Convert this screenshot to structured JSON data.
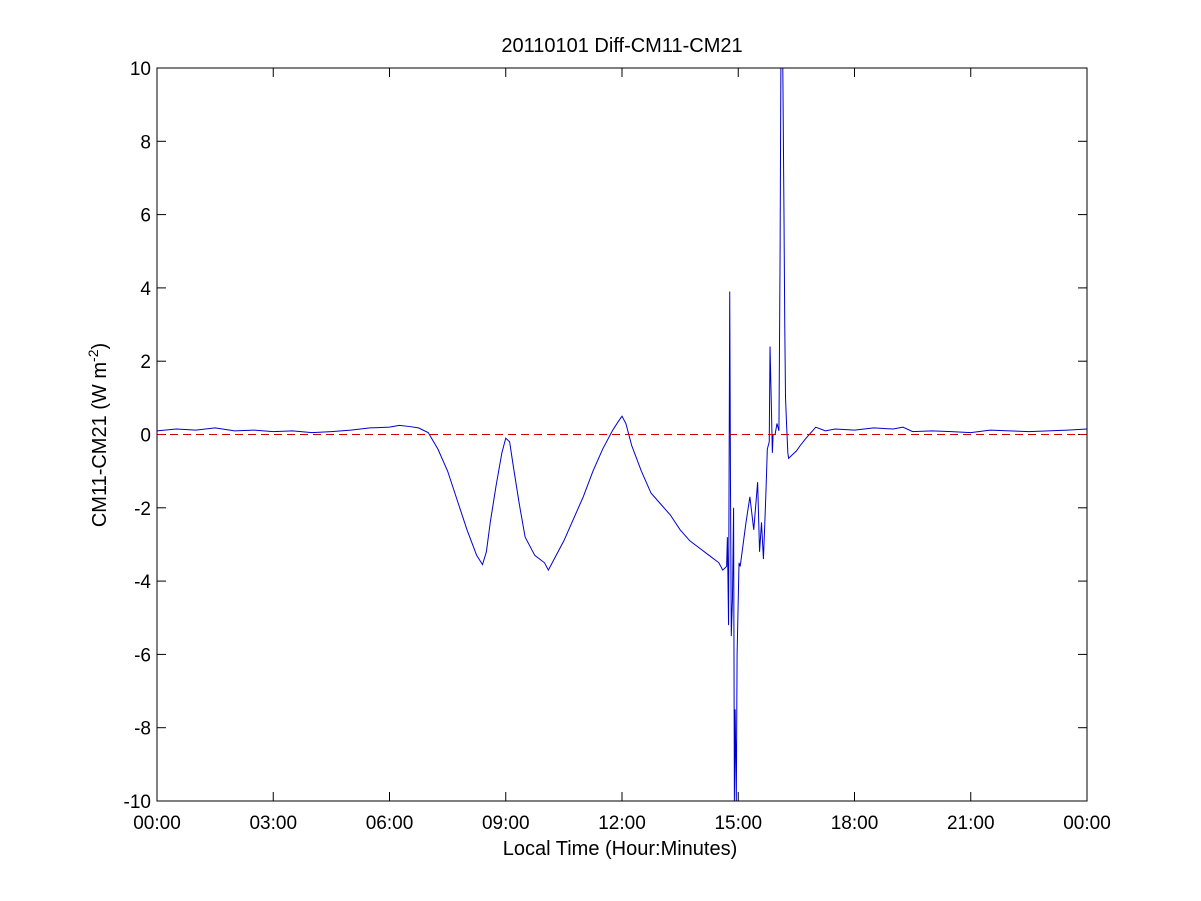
{
  "chart_data": {
    "type": "line",
    "title": "20110101 Diff-CM11-CM21",
    "xlabel": "Local Time (Hour:Minutes)",
    "ylabel": {
      "prefix": "CM11-CM21 (W m",
      "superscript": "-2",
      "suffix": ")"
    },
    "xlim": [
      0,
      24
    ],
    "ylim": [
      -10,
      10
    ],
    "x_ticks": [
      {
        "value": 0,
        "label": "00:00"
      },
      {
        "value": 3,
        "label": "03:00"
      },
      {
        "value": 6,
        "label": "06:00"
      },
      {
        "value": 9,
        "label": "09:00"
      },
      {
        "value": 12,
        "label": "12:00"
      },
      {
        "value": 15,
        "label": "15:00"
      },
      {
        "value": 18,
        "label": "18:00"
      },
      {
        "value": 21,
        "label": "21:00"
      },
      {
        "value": 24,
        "label": "00:00"
      }
    ],
    "y_ticks": [
      {
        "value": 10,
        "label": "10"
      },
      {
        "value": 8,
        "label": "8"
      },
      {
        "value": 6,
        "label": "6"
      },
      {
        "value": 4,
        "label": "4"
      },
      {
        "value": 2,
        "label": "2"
      },
      {
        "value": 0,
        "label": "0"
      },
      {
        "value": -2,
        "label": "-2"
      },
      {
        "value": -4,
        "label": "-4"
      },
      {
        "value": -6,
        "label": "-6"
      },
      {
        "value": -8,
        "label": "-8"
      },
      {
        "value": -10,
        "label": "-10"
      }
    ],
    "grid": false,
    "legend": false,
    "series": [
      {
        "color": "#0000cc",
        "style": "solid",
        "x": [
          0.0,
          0.5,
          1.0,
          1.5,
          2.0,
          2.5,
          3.0,
          3.5,
          4.0,
          4.5,
          5.0,
          5.5,
          6.0,
          6.25,
          6.5,
          6.75,
          7.0,
          7.25,
          7.5,
          7.75,
          8.0,
          8.25,
          8.4,
          8.5,
          8.6,
          8.75,
          8.9,
          9.0,
          9.1,
          9.2,
          9.35,
          9.5,
          9.75,
          10.0,
          10.1,
          10.2,
          10.35,
          10.5,
          10.75,
          11.0,
          11.25,
          11.5,
          11.75,
          11.9,
          12.0,
          12.1,
          12.25,
          12.5,
          12.75,
          13.0,
          13.25,
          13.5,
          13.75,
          14.0,
          14.25,
          14.5,
          14.6,
          14.7,
          14.72,
          14.75,
          14.78,
          14.8,
          14.82,
          14.85,
          14.88,
          14.9,
          14.92,
          14.95,
          14.97,
          15.0,
          15.02,
          15.05,
          15.1,
          15.2,
          15.3,
          15.4,
          15.5,
          15.55,
          15.6,
          15.65,
          15.7,
          15.72,
          15.75,
          15.8,
          15.82,
          15.85,
          15.88,
          15.9,
          15.95,
          16.0,
          16.05,
          16.08,
          16.1,
          16.12,
          16.15,
          16.18,
          16.2,
          16.22,
          16.25,
          16.28,
          16.3,
          16.35,
          16.4,
          16.5,
          16.6,
          16.75,
          17.0,
          17.25,
          17.5,
          18.0,
          18.5,
          19.0,
          19.25,
          19.5,
          20.0,
          20.5,
          21.0,
          21.5,
          22.0,
          22.5,
          23.0,
          23.5,
          24.0
        ],
        "y": [
          0.1,
          0.15,
          0.12,
          0.18,
          0.1,
          0.12,
          0.08,
          0.1,
          0.05,
          0.08,
          0.12,
          0.18,
          0.2,
          0.25,
          0.22,
          0.18,
          0.05,
          -0.4,
          -1.0,
          -1.8,
          -2.6,
          -3.3,
          -3.55,
          -3.2,
          -2.4,
          -1.4,
          -0.5,
          -0.1,
          -0.2,
          -0.9,
          -1.9,
          -2.8,
          -3.3,
          -3.5,
          -3.7,
          -3.5,
          -3.2,
          -2.9,
          -2.3,
          -1.7,
          -1.0,
          -0.4,
          0.1,
          0.35,
          0.5,
          0.3,
          -0.3,
          -1.0,
          -1.6,
          -1.9,
          -2.2,
          -2.6,
          -2.9,
          -3.1,
          -3.3,
          -3.5,
          -3.7,
          -3.6,
          -2.8,
          -5.2,
          3.9,
          -1.5,
          -5.5,
          -4.5,
          -2.0,
          -10.0,
          -7.5,
          -10.0,
          -6.0,
          -4.5,
          -3.5,
          -3.6,
          -3.2,
          -2.4,
          -1.7,
          -2.6,
          -1.3,
          -3.2,
          -2.4,
          -3.4,
          -2.0,
          -1.4,
          -0.4,
          -0.2,
          2.4,
          1.0,
          -0.5,
          0.0,
          0.0,
          0.3,
          0.1,
          5.0,
          10.0,
          10.0,
          10.0,
          6.0,
          3.0,
          1.0,
          0.2,
          -0.5,
          -0.65,
          -0.6,
          -0.55,
          -0.45,
          -0.3,
          -0.1,
          0.2,
          0.1,
          0.15,
          0.12,
          0.18,
          0.15,
          0.2,
          0.08,
          0.1,
          0.08,
          0.05,
          0.12,
          0.1,
          0.08,
          0.1,
          0.12,
          0.15
        ]
      },
      {
        "color": "#cc0000",
        "style": "dashed",
        "x": [
          0,
          24
        ],
        "y": [
          0,
          0
        ]
      }
    ]
  }
}
